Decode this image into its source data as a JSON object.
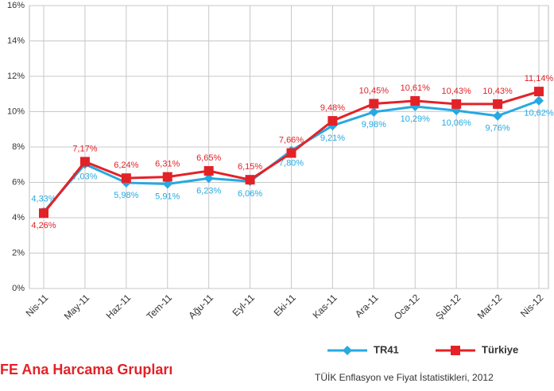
{
  "chart_data": {
    "type": "line",
    "title": "FE Ana Harcama Grupları",
    "source": "TÜİK Enflasyon ve Fiyat İstatistikleri, 2012",
    "categories": [
      "Nis-11",
      "May-11",
      "Haz-11",
      "Tem-11",
      "Ağu-11",
      "Eyl-11",
      "Eki-11",
      "Kas-11",
      "Ara-11",
      "Oca-12",
      "Şub-12",
      "Mar-12",
      "Nis-12"
    ],
    "series": [
      {
        "name": "TR41",
        "color": "#27a9e1",
        "marker": "diamond",
        "values": [
          4.33,
          7.03,
          5.98,
          5.91,
          6.23,
          6.06,
          7.8,
          9.21,
          9.98,
          10.29,
          10.06,
          9.76,
          10.62
        ],
        "value_labels": [
          "4,33%",
          "7,03%",
          "5,98%",
          "5,91%",
          "6,23%",
          "6,06%",
          "7,80%",
          "9,21%",
          "9,98%",
          "10,29%",
          "10,06%",
          "9,76%",
          "10,62%"
        ]
      },
      {
        "name": "Türkiye",
        "color": "#e32228",
        "marker": "square",
        "values": [
          4.26,
          7.17,
          6.24,
          6.31,
          6.65,
          6.15,
          7.66,
          9.48,
          10.45,
          10.61,
          10.43,
          10.43,
          11.14
        ],
        "value_labels": [
          "4,26%",
          "7,17%",
          "6,24%",
          "6,31%",
          "6,65%",
          "6,15%",
          "7,66%",
          "9,48%",
          "10,45%",
          "10,61%",
          "10,43%",
          "10,43%",
          "11,14%"
        ]
      }
    ],
    "ylim": [
      0,
      16
    ],
    "yticks": [
      {
        "value": 0,
        "label": "0%"
      },
      {
        "value": 2,
        "label": "2%"
      },
      {
        "value": 4,
        "label": "4%"
      },
      {
        "value": 6,
        "label": "6%"
      },
      {
        "value": 8,
        "label": "8%"
      },
      {
        "value": 10,
        "label": "10%"
      },
      {
        "value": 12,
        "label": "12%"
      },
      {
        "value": 14,
        "label": "14%"
      },
      {
        "value": 16,
        "label": "16%"
      }
    ],
    "grid": true,
    "legend": "bottom"
  }
}
